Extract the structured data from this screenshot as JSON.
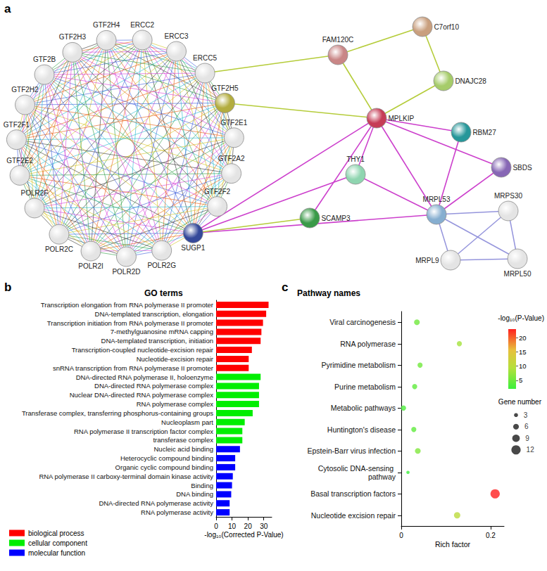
{
  "chart_data": [
    {
      "panel": "a",
      "type": "network",
      "nodes": [
        {
          "label": "GTF2H4",
          "color": "#e4e4e4"
        },
        {
          "label": "ERCC2",
          "color": "#e4e4e4"
        },
        {
          "label": "ERCC3",
          "color": "#e4e4e4"
        },
        {
          "label": "ERCC5",
          "color": "#e4e4e4"
        },
        {
          "label": "GTF2H5",
          "color": "#b3ad3f"
        },
        {
          "label": "GTF2E1",
          "color": "#e4e4e4"
        },
        {
          "label": "GTF2A2",
          "color": "#e4e4e4"
        },
        {
          "label": "GTF2F2",
          "color": "#e4e4e4"
        },
        {
          "label": "SUGP1",
          "color": "#34489a"
        },
        {
          "label": "POLR2G",
          "color": "#e4e4e4"
        },
        {
          "label": "POLR2D",
          "color": "#e4e4e4"
        },
        {
          "label": "POLR2I",
          "color": "#e4e4e4"
        },
        {
          "label": "POLR2C",
          "color": "#e4e4e4"
        },
        {
          "label": "POLR2F",
          "color": "#e4e4e4"
        },
        {
          "label": "GTF2E2",
          "color": "#e4e4e4"
        },
        {
          "label": "GTF2F1",
          "color": "#e4e4e4"
        },
        {
          "label": "GTF2H2",
          "color": "#e4e4e4"
        },
        {
          "label": "GTF2B",
          "color": "#e4e4e4"
        },
        {
          "label": "GTF2H3",
          "color": "#e4e4e4"
        },
        {
          "label": "C7orf10",
          "color": "#c99f7e"
        },
        {
          "label": "FAM120C",
          "color": "#c98686"
        },
        {
          "label": "DNAJC28",
          "color": "#a6cc6a"
        },
        {
          "label": "MPLKIP",
          "color": "#c63c57"
        },
        {
          "label": "RBM27",
          "color": "#26979a"
        },
        {
          "label": "SBDS",
          "color": "#8767b5"
        },
        {
          "label": "THY1",
          "color": "#8fd5b0"
        },
        {
          "label": "SCAMP3",
          "color": "#3a9a48"
        },
        {
          "label": "MRPL53",
          "color": "#86aed0"
        },
        {
          "label": "MRPS30",
          "color": "#e4e4e4"
        },
        {
          "label": "MRPL9",
          "color": "#e4e4e4"
        },
        {
          "label": "MRPL50",
          "color": "#e4e4e4"
        }
      ],
      "cliques": [
        {
          "members": [
            "GTF2H4",
            "ERCC2",
            "ERCC3",
            "ERCC5",
            "GTF2H5",
            "GTF2E1",
            "GTF2A2",
            "GTF2F2",
            "SUGP1",
            "POLR2G",
            "POLR2D",
            "POLR2I",
            "POLR2C",
            "POLR2F",
            "GTF2E2",
            "GTF2F1",
            "GTF2H2",
            "GTF2B",
            "GTF2H3"
          ]
        },
        {
          "members": [
            "MRPL53",
            "MRPS30",
            "MRPL9",
            "MRPL50"
          ],
          "color": "#8a8ad8"
        }
      ],
      "edges": [
        {
          "source": "ERCC5",
          "target": "FAM120C",
          "color": "#b5cc3a"
        },
        {
          "source": "GTF2H5",
          "target": "MPLKIP",
          "color": "#b5cc3a"
        },
        {
          "source": "FAM120C",
          "target": "C7orf10",
          "color": "#b5cc3a"
        },
        {
          "source": "FAM120C",
          "target": "MPLKIP",
          "color": "#b5cc3a"
        },
        {
          "source": "C7orf10",
          "target": "DNAJC28",
          "color": "#b5cc3a"
        },
        {
          "source": "DNAJC28",
          "target": "MPLKIP",
          "color": "#b5cc3a"
        },
        {
          "source": "MPLKIP",
          "target": "SUGP1",
          "color": "#cc3fcc"
        },
        {
          "source": "MPLKIP",
          "target": "SCAMP3",
          "color": "#cc3fcc"
        },
        {
          "source": "MPLKIP",
          "target": "THY1",
          "color": "#cc3fcc"
        },
        {
          "source": "MPLKIP",
          "target": "MRPL53",
          "color": "#cc3fcc"
        },
        {
          "source": "MPLKIP",
          "target": "RBM27",
          "color": "#cc3fcc"
        },
        {
          "source": "MPLKIP",
          "target": "SBDS",
          "color": "#cc3fcc"
        },
        {
          "source": "SUGP1",
          "target": "THY1",
          "color": "#cc3fcc"
        },
        {
          "source": "SUGP1",
          "target": "MRPL53",
          "color": "#cc3fcc"
        },
        {
          "source": "THY1",
          "target": "MRPL53",
          "color": "#cc3fcc"
        },
        {
          "source": "RBM27",
          "target": "MRPL53",
          "color": "#cc3fcc"
        },
        {
          "source": "SBDS",
          "target": "MRPL53",
          "color": "#cc3fcc"
        },
        {
          "source": "SUGP1",
          "target": "SCAMP3",
          "color": "#b5cc3a"
        }
      ]
    },
    {
      "panel": "b",
      "type": "bar",
      "title": "GO terms",
      "orientation": "horizontal",
      "categories": [
        "Transcription elongation from RNA polymerase II promoter",
        "DNA-templated transcription, elongation",
        "Transcription initiation from RNA polymerase II promoter",
        "7-methylguanosine mRNA capping",
        "DNA-templated transcription, initiation",
        "Transcription-coupled nucleotide-excision repair",
        "Nucleotide-excision repair",
        "snRNA transcription from RNA polymerase II promoter",
        "DNA-directed RNA polymerase II, holoenzyme",
        "DNA-directed RNA polymerase complex",
        "Nuclear DNA-directed RNA polymerase complex",
        "RNA polymerase complex",
        "Transferase complex, transferring phosphorus-containing groups",
        "Nucleoplasm part",
        "RNA polymerase II transcription factor complex",
        "transferase complex",
        "Nucleic acid binding",
        "Heterocyclic compound binding",
        "Organic cyclic compound binding",
        "RNA polymerase II carboxy-terminal domain kinase activity",
        "Binding",
        "DNA binding",
        "DNA-directed RNA polymerase activity",
        "RNA polymerase activity"
      ],
      "series": [
        {
          "name": "biological process",
          "color": "#ff0000",
          "values": [
            33,
            31.5,
            29.5,
            28.5,
            28,
            22.5,
            20.5,
            20.5,
            null,
            null,
            null,
            null,
            null,
            null,
            null,
            null,
            null,
            null,
            null,
            null,
            null,
            null,
            null,
            null
          ]
        },
        {
          "name": "cellular component",
          "color": "#00ee00",
          "values": [
            null,
            null,
            null,
            null,
            null,
            null,
            null,
            null,
            28,
            27,
            27,
            27,
            23,
            18,
            16.5,
            16.5,
            null,
            null,
            null,
            null,
            null,
            null,
            null,
            null
          ]
        },
        {
          "name": "molecular function",
          "color": "#0000ff",
          "values": [
            null,
            null,
            null,
            null,
            null,
            null,
            null,
            null,
            null,
            null,
            null,
            null,
            null,
            null,
            null,
            null,
            15,
            12,
            12,
            10.5,
            10,
            9.5,
            8.5,
            8.5
          ]
        }
      ],
      "xlabel": "-log₁₀(Corrected P-Value)",
      "xlim": [
        0,
        35
      ],
      "xticks": [
        0,
        10,
        20,
        30
      ],
      "legend": "lower left",
      "grid": false
    },
    {
      "panel": "c",
      "type": "scatter",
      "title": "Pathway names",
      "categories": [
        "Viral carcinogenesis",
        "RNA polymerase",
        "Pyrimidine metabolism",
        "Purine metabolism",
        "Metabolic pathways",
        "Huntington's disease",
        "Epstein-Barr virus infection",
        "Cytosolic DNA-sensing pathway",
        "Basal transcription factors",
        "Nucleotide excision repair"
      ],
      "values": [
        0.035,
        0.13,
        0.042,
        0.03,
        0.005,
        0.028,
        0.037,
        0.015,
        0.21,
        0.125
      ],
      "sizes": [
        6,
        5,
        5,
        5,
        5,
        5,
        6,
        2,
        12,
        7
      ],
      "color_values": [
        5,
        8,
        5,
        4,
        3,
        4,
        6,
        2,
        23,
        10
      ],
      "xlabel": "Rich factor",
      "xlim": [
        0,
        0.23
      ],
      "xticks": [
        0,
        0.2
      ],
      "colorbar_label": "-log₁₀(P-Value)",
      "colorbar_range": [
        2,
        23
      ],
      "colorbar_ticks": [
        5,
        10,
        15,
        20
      ],
      "size_label": "Gene number",
      "size_legend": [
        3,
        6,
        9,
        12
      ],
      "grid": false
    }
  ]
}
